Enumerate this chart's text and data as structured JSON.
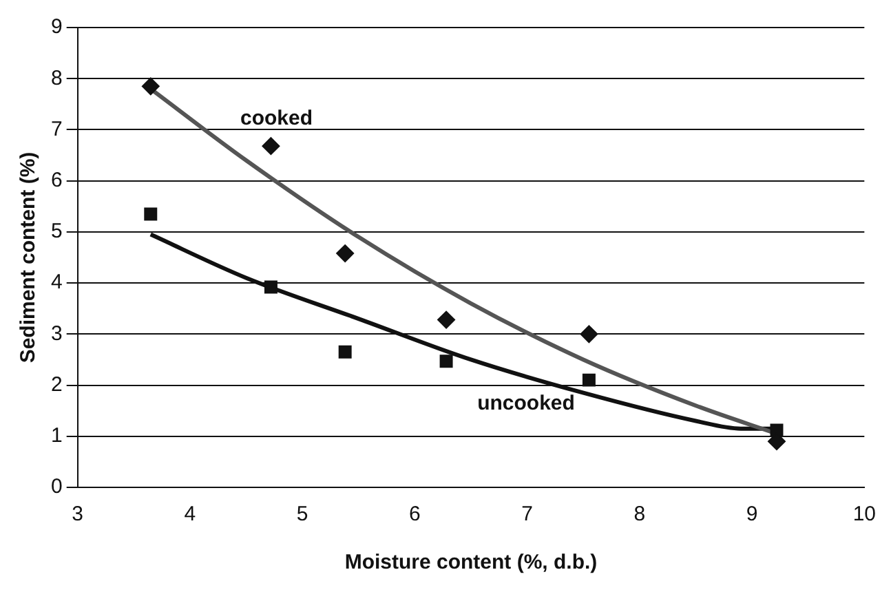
{
  "chart_data": {
    "type": "scatter",
    "xlabel": "Moisture content (%, d.b.)",
    "ylabel": "Sediment content (%)",
    "xlim": [
      3,
      10
    ],
    "xticks": [
      3,
      4,
      5,
      6,
      7,
      8,
      9,
      10
    ],
    "ylim": [
      0,
      9
    ],
    "yticks": [
      0,
      1,
      2,
      3,
      4,
      5,
      6,
      7,
      8,
      9
    ],
    "grid": "y",
    "legend": false,
    "series": [
      {
        "marker": "diamond",
        "color": "#111111",
        "x": [
          3.65,
          4.72,
          5.38,
          6.28,
          7.55,
          9.22
        ],
        "values": [
          7.85,
          6.68,
          4.58,
          3.28,
          3.0,
          0.9
        ]
      },
      {
        "marker": "square",
        "color": "#111111",
        "x": [
          3.65,
          4.72,
          5.38,
          6.28,
          7.55,
          9.22
        ],
        "values": [
          5.35,
          3.92,
          2.65,
          2.47,
          2.1,
          1.12
        ]
      },
      {
        "type": "line",
        "name": "cooked",
        "marker": "none",
        "line_style": "solid",
        "color": "#555555",
        "x": [
          3.65,
          4.5,
          5.5,
          6.5,
          7.5,
          8.5,
          9.22
        ],
        "values": [
          7.8,
          6.4,
          4.9,
          3.6,
          2.5,
          1.6,
          1.05
        ]
      },
      {
        "type": "line",
        "name": "uncooked",
        "marker": "none",
        "line_style": "solid",
        "color": "#111111",
        "x": [
          3.65,
          4.5,
          5.5,
          6.5,
          7.5,
          8.5,
          8.9,
          9.22
        ],
        "values": [
          4.95,
          4.1,
          3.3,
          2.5,
          1.85,
          1.3,
          1.15,
          1.15
        ]
      }
    ]
  }
}
